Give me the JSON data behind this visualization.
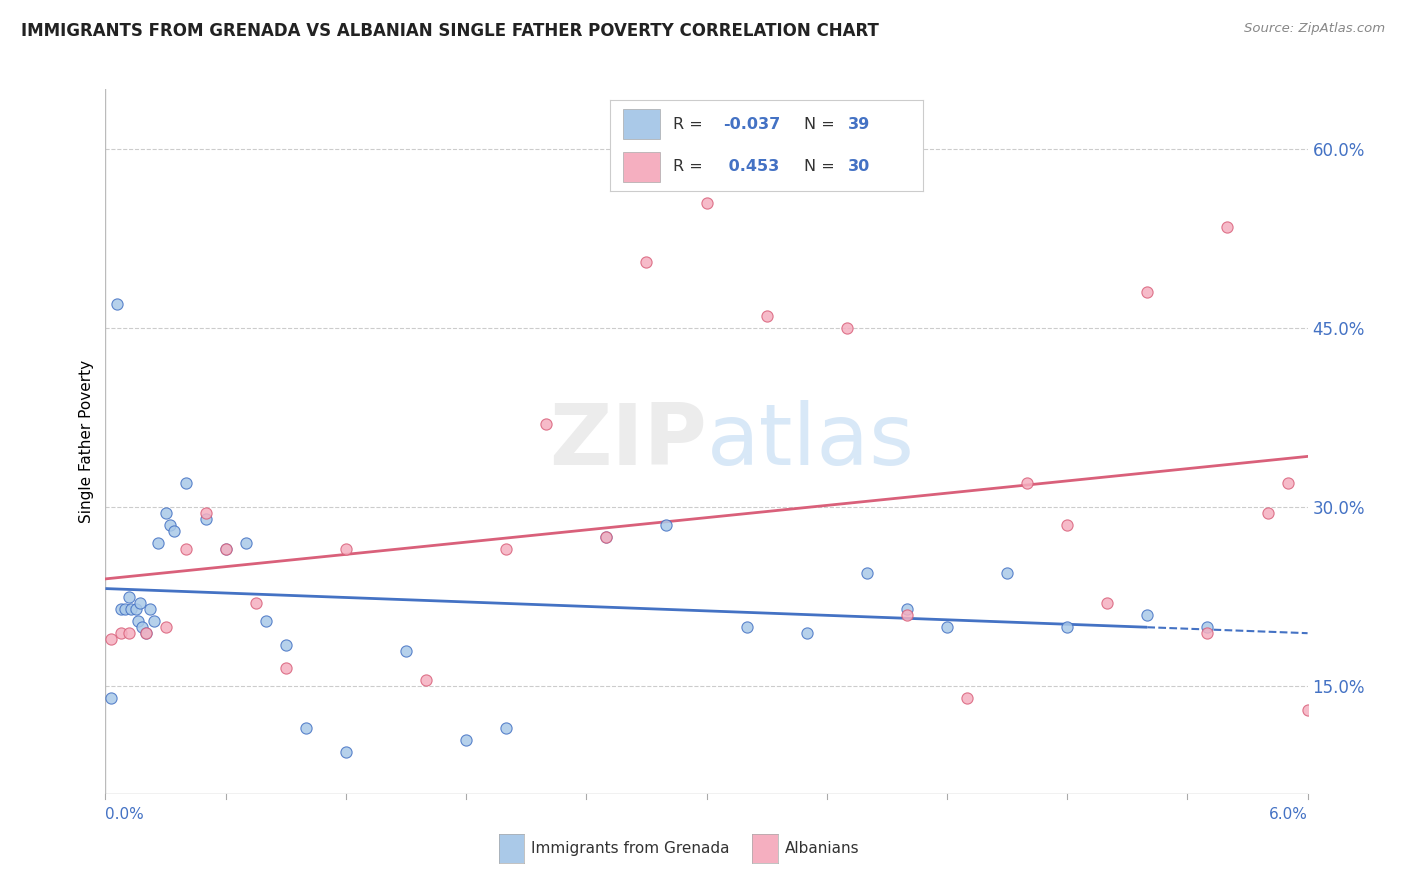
{
  "title": "IMMIGRANTS FROM GRENADA VS ALBANIAN SINGLE FATHER POVERTY CORRELATION CHART",
  "source": "Source: ZipAtlas.com",
  "ylabel": "Single Father Poverty",
  "yticks": [
    0.15,
    0.3,
    0.45,
    0.6
  ],
  "ytick_labels": [
    "15.0%",
    "30.0%",
    "45.0%",
    "60.0%"
  ],
  "xlim": [
    0.0,
    0.06
  ],
  "ylim": [
    0.06,
    0.65
  ],
  "grenada_R": "-0.037",
  "grenada_N": "39",
  "albanian_R": "0.453",
  "albanian_N": "30",
  "grenada_color": "#aac9e8",
  "albanian_color": "#f5afc0",
  "grenada_line_color": "#4472c4",
  "albanian_line_color": "#d9607a",
  "tick_color": "#4472c4",
  "grenada_x": [
    0.0003,
    0.0006,
    0.0008,
    0.001,
    0.0012,
    0.0013,
    0.0015,
    0.0016,
    0.0017,
    0.0018,
    0.002,
    0.0022,
    0.0024,
    0.0026,
    0.003,
    0.0032,
    0.0034,
    0.004,
    0.005,
    0.006,
    0.007,
    0.008,
    0.009,
    0.01,
    0.012,
    0.015,
    0.018,
    0.02,
    0.025,
    0.028,
    0.032,
    0.035,
    0.038,
    0.04,
    0.042,
    0.045,
    0.048,
    0.052,
    0.055
  ],
  "grenada_y": [
    0.14,
    0.47,
    0.215,
    0.215,
    0.225,
    0.215,
    0.215,
    0.205,
    0.22,
    0.2,
    0.195,
    0.215,
    0.205,
    0.27,
    0.295,
    0.285,
    0.28,
    0.32,
    0.29,
    0.265,
    0.27,
    0.205,
    0.185,
    0.115,
    0.095,
    0.18,
    0.105,
    0.115,
    0.275,
    0.285,
    0.2,
    0.195,
    0.245,
    0.215,
    0.2,
    0.245,
    0.2,
    0.21,
    0.2
  ],
  "albanian_x": [
    0.0003,
    0.0008,
    0.0012,
    0.002,
    0.003,
    0.004,
    0.005,
    0.006,
    0.0075,
    0.009,
    0.012,
    0.016,
    0.02,
    0.022,
    0.025,
    0.027,
    0.03,
    0.033,
    0.037,
    0.04,
    0.043,
    0.046,
    0.048,
    0.05,
    0.052,
    0.055,
    0.056,
    0.058,
    0.059,
    0.06
  ],
  "albanian_y": [
    0.19,
    0.195,
    0.195,
    0.195,
    0.2,
    0.265,
    0.295,
    0.265,
    0.22,
    0.165,
    0.265,
    0.155,
    0.265,
    0.37,
    0.275,
    0.505,
    0.555,
    0.46,
    0.45,
    0.21,
    0.14,
    0.32,
    0.285,
    0.22,
    0.48,
    0.195,
    0.535,
    0.295,
    0.32,
    0.13
  ]
}
